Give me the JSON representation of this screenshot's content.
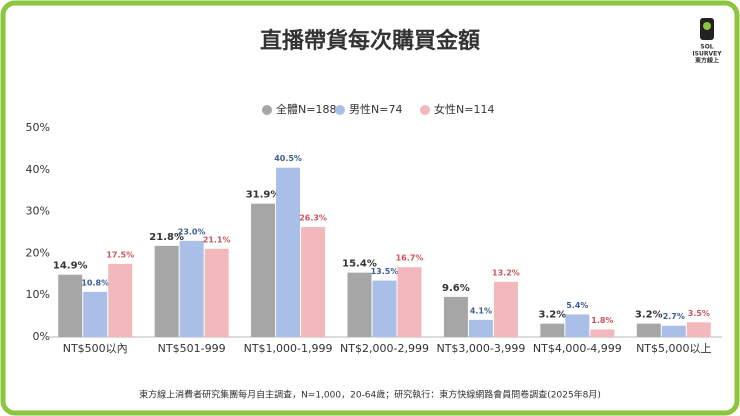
{
  "chart_data": {
    "type": "bar",
    "title": "直播帶貨每次購買金額",
    "logo": {
      "line1": "SOL",
      "line2": "ISURVEY",
      "line3": "東方線上"
    },
    "categories": [
      "NT$500以內",
      "NT$501-999",
      "NT$1,000-1,999",
      "NT$2,000-2,999",
      "NT$3,000-3,999",
      "NT$4,000-4,999",
      "NT$5,000以上"
    ],
    "series": [
      {
        "name": "全體N=188",
        "color": "#a6a6a6",
        "values": [
          14.9,
          21.8,
          31.9,
          15.4,
          9.6,
          3.2,
          3.2
        ],
        "value_labels": [
          "14.9%",
          "21.8%",
          "31.9%",
          "15.4%",
          "9.6%",
          "3.2%",
          "3.2%"
        ]
      },
      {
        "name": "男性N=74",
        "color": "#a9bfe8",
        "values": [
          10.8,
          23.0,
          40.5,
          13.5,
          4.1,
          5.4,
          2.7
        ],
        "value_labels": [
          "10.8%",
          "23.0%",
          "40.5%",
          "13.5%",
          "4.1%",
          "5.4%",
          "2.7%"
        ]
      },
      {
        "name": "女性N=114",
        "color": "#f2b8bb",
        "values": [
          17.5,
          21.1,
          26.3,
          16.7,
          13.2,
          1.8,
          3.5
        ],
        "value_labels": [
          "17.5%",
          "21.1%",
          "26.3%",
          "16.7%",
          "13.2%",
          "1.8%",
          "3.5%"
        ]
      }
    ],
    "ylim": [
      0,
      50
    ],
    "yticks": [
      {
        "value": 0,
        "label": "0%"
      },
      {
        "value": 10,
        "label": "10%"
      },
      {
        "value": 20,
        "label": "20%"
      },
      {
        "value": 30,
        "label": "30%"
      },
      {
        "value": 40,
        "label": "40%"
      },
      {
        "value": 50,
        "label": "50%"
      }
    ],
    "grid": false,
    "source": "東方線上消費者研究集團每月自主調查，N=1,000，20-64歲；研究執行：東方快線網路會員問卷調查(2025年8月)"
  }
}
